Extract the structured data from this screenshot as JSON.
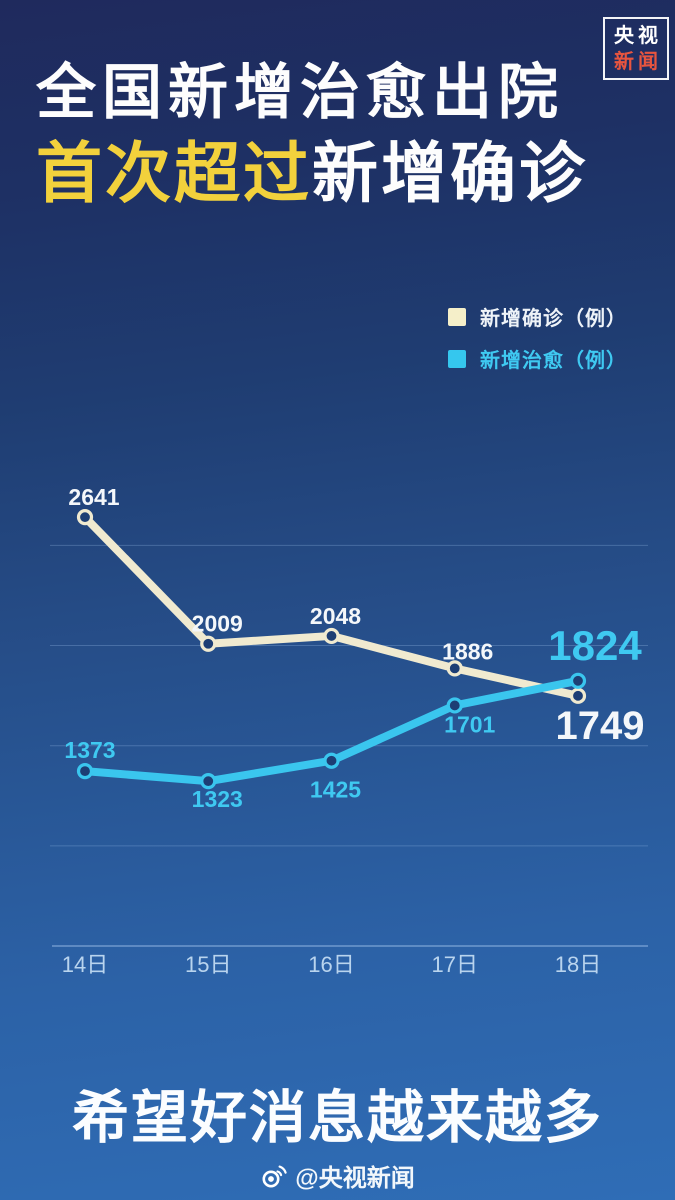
{
  "logo": {
    "line1": "央视",
    "line2": "新闻",
    "line2_color": "#e8553f"
  },
  "title": {
    "line1": "全国新增治愈出院",
    "line2_highlight": "首次超过",
    "line2_rest": "新增确诊",
    "highlight_color": "#f2d13c",
    "text_color": "#fdfdfd"
  },
  "legend": [
    {
      "label": "新增确诊（例）",
      "swatch": "#f5efc9",
      "text_color": "#eef3f8"
    },
    {
      "label": "新增治愈（例）",
      "swatch": "#35c7ee",
      "text_color": "#3fc9f1"
    }
  ],
  "chart_data": {
    "type": "line",
    "categories": [
      "14日",
      "15日",
      "16日",
      "17日",
      "18日"
    ],
    "series": [
      {
        "name": "新增确诊（例）",
        "color": "#f0ead0",
        "label_color": "#f4f7fa",
        "values": [
          2641,
          2009,
          2048,
          1886,
          1749
        ],
        "label_dx": [
          9,
          9,
          4,
          13,
          22
        ],
        "label_dy": [
          -12,
          -12,
          -12,
          -9,
          43
        ],
        "label_size": [
          23,
          23,
          23,
          23,
          40
        ]
      },
      {
        "name": "新增治愈（例）",
        "color": "#3ac6ee",
        "label_color": "#3fc9f1",
        "values": [
          1373,
          1323,
          1425,
          1701,
          1824
        ],
        "label_dx": [
          5,
          9,
          4,
          15,
          17
        ],
        "label_dy": [
          -13,
          26,
          37,
          27,
          -21
        ],
        "label_size": [
          23,
          23,
          23,
          23,
          42
        ]
      }
    ],
    "ylim": [
      500,
      2800
    ],
    "gridline_values": [
      1000,
      1500,
      2000,
      2500
    ],
    "grid": true,
    "legend_position": "top-right",
    "xlabel": "",
    "ylabel": "",
    "x_axis_label_color": "#b9d4ee",
    "marker_fill": "#1d3e74"
  },
  "footer": {
    "slogan": "希望好消息越来越多",
    "credit": "@央视新闻"
  }
}
